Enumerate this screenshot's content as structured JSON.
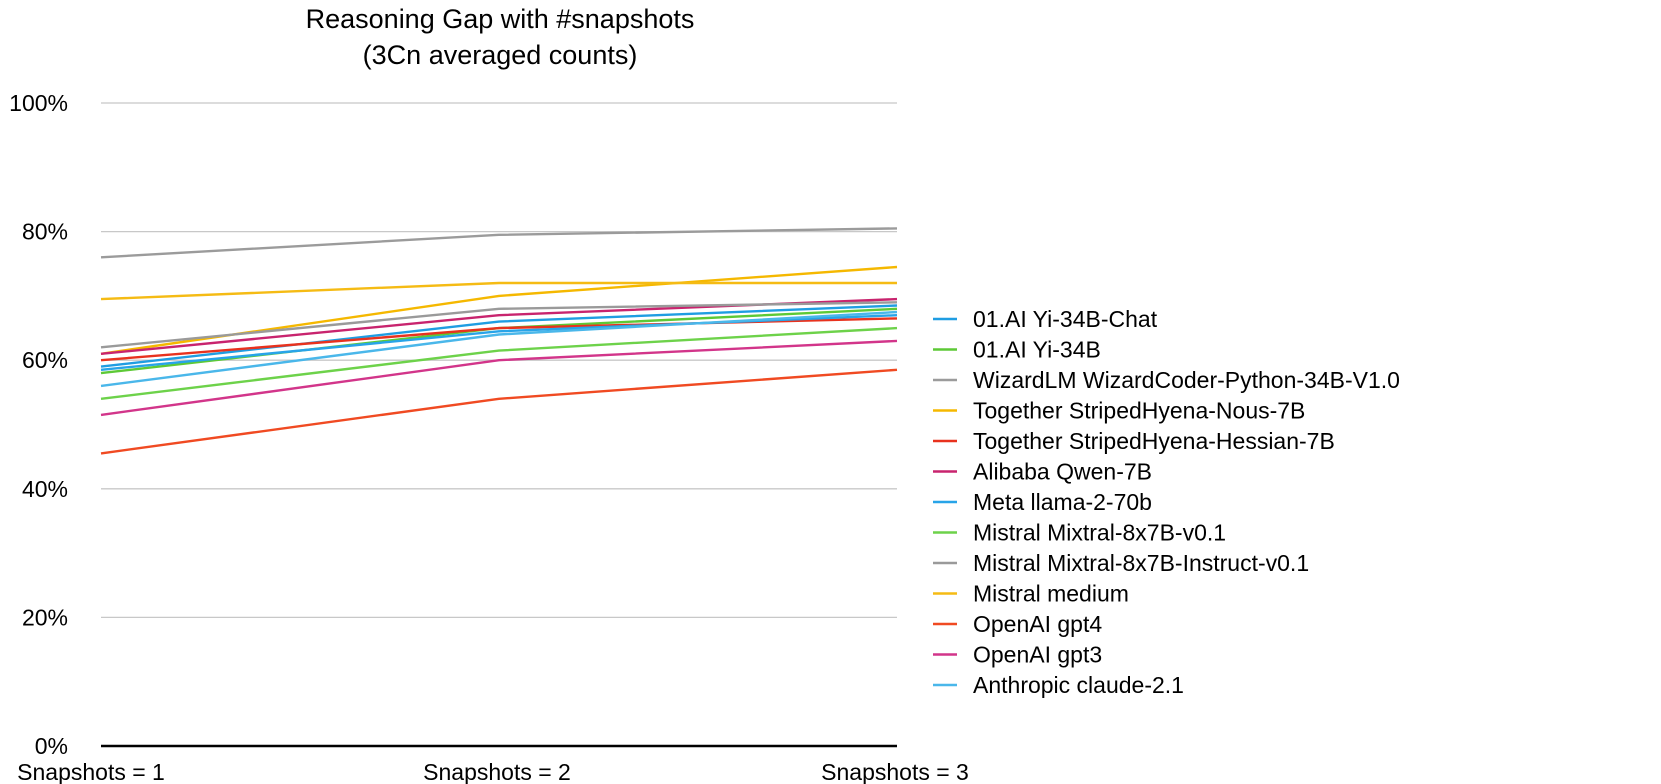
{
  "chart_data": {
    "type": "line",
    "title": "Reasoning Gap with #snapshots",
    "subtitle": "(3Cn averaged counts)",
    "xlabel": "",
    "ylabel": "",
    "categories": [
      "Snapshots = 1",
      "Snapshots = 2",
      "Snapshots = 3"
    ],
    "y_ticks": [
      "0%",
      "20%",
      "40%",
      "60%",
      "80%",
      "100%"
    ],
    "y_tick_values": [
      0,
      20,
      40,
      60,
      80,
      100
    ],
    "ylim": [
      0,
      100
    ],
    "grid": true,
    "legend_position": "right",
    "series": [
      {
        "name": "01.AI Yi-34B-Chat",
        "color": "#1f9de2",
        "values": [
          59,
          66,
          68.5
        ]
      },
      {
        "name": "01.AI Yi-34B",
        "color": "#5dc936",
        "values": [
          58,
          65,
          68
        ]
      },
      {
        "name": "WizardLM WizardCoder-Python-34B-V1.0",
        "color": "#9b9b9b",
        "values": [
          76,
          79.5,
          80.5
        ]
      },
      {
        "name": "Together StripedHyena-Nous-7B",
        "color": "#f5b800",
        "values": [
          61,
          70,
          74.5
        ]
      },
      {
        "name": "Together StripedHyena-Hessian-7B",
        "color": "#e8321e",
        "values": [
          60,
          65,
          66.5
        ]
      },
      {
        "name": "Alibaba Qwen-7B",
        "color": "#c8246e",
        "values": [
          61,
          67,
          69.5
        ]
      },
      {
        "name": "Meta llama-2-70b",
        "color": "#28a4e8",
        "values": [
          58.5,
          64.5,
          67
        ]
      },
      {
        "name": "Mistral Mixtral-8x7B-v0.1",
        "color": "#6dd24a",
        "values": [
          54,
          61.5,
          65
        ]
      },
      {
        "name": "Mistral Mixtral-8x7B-Instruct-v0.1",
        "color": "#9a9a9a",
        "values": [
          62,
          68,
          69
        ]
      },
      {
        "name": "Mistral medium",
        "color": "#f5bb14",
        "values": [
          69.5,
          72,
          72
        ]
      },
      {
        "name": "OpenAI gpt4",
        "color": "#f04a22",
        "values": [
          45.5,
          54,
          58.5
        ]
      },
      {
        "name": "OpenAI gpt3",
        "color": "#d2358a",
        "values": [
          51.5,
          60,
          63
        ]
      },
      {
        "name": "Anthropic claude-2.1",
        "color": "#4ab7ea",
        "values": [
          56,
          64,
          67.5
        ]
      }
    ]
  }
}
